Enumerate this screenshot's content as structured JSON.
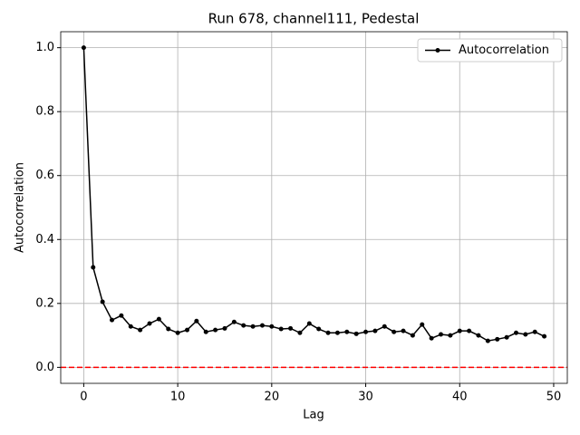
{
  "chart_data": {
    "type": "line",
    "title": "Run 678, channel111, Pedestal",
    "xlabel": "Lag",
    "ylabel": "Autocorrelation",
    "x": [
      0,
      1,
      2,
      3,
      4,
      5,
      6,
      7,
      8,
      9,
      10,
      11,
      12,
      13,
      14,
      15,
      16,
      17,
      18,
      19,
      20,
      21,
      22,
      23,
      24,
      25,
      26,
      27,
      28,
      29,
      30,
      31,
      32,
      33,
      34,
      35,
      36,
      37,
      38,
      39,
      40,
      41,
      42,
      43,
      44,
      45,
      46,
      47,
      48,
      49
    ],
    "series": [
      {
        "name": "Autocorrelation",
        "color": "#000000",
        "values": [
          1.0,
          0.313,
          0.205,
          0.148,
          0.162,
          0.128,
          0.117,
          0.137,
          0.151,
          0.12,
          0.108,
          0.117,
          0.145,
          0.111,
          0.117,
          0.122,
          0.142,
          0.131,
          0.128,
          0.131,
          0.128,
          0.12,
          0.122,
          0.108,
          0.137,
          0.12,
          0.108,
          0.108,
          0.111,
          0.105,
          0.111,
          0.114,
          0.128,
          0.111,
          0.114,
          0.1,
          0.134,
          0.091,
          0.103,
          0.1,
          0.114,
          0.114,
          0.1,
          0.083,
          0.088,
          0.094,
          0.108,
          0.103,
          0.111,
          0.097
        ]
      }
    ],
    "hline": {
      "y": 0,
      "color": "#ff0000"
    },
    "xlim": [
      -2.45,
      51.45
    ],
    "xticks": [
      0,
      10,
      20,
      30,
      40,
      50
    ],
    "ylim": [
      -0.05,
      1.05
    ],
    "yticks": [
      {
        "value": 0,
        "label": "0.0"
      },
      {
        "value": 0.2,
        "label": "0.2"
      },
      {
        "value": 0.4,
        "label": "0.4"
      },
      {
        "value": 0.6,
        "label": "0.6"
      },
      {
        "value": 0.8,
        "label": "0.8"
      },
      {
        "value": 1,
        "label": "1.0"
      }
    ],
    "grid": true,
    "legend": "upper right"
  }
}
